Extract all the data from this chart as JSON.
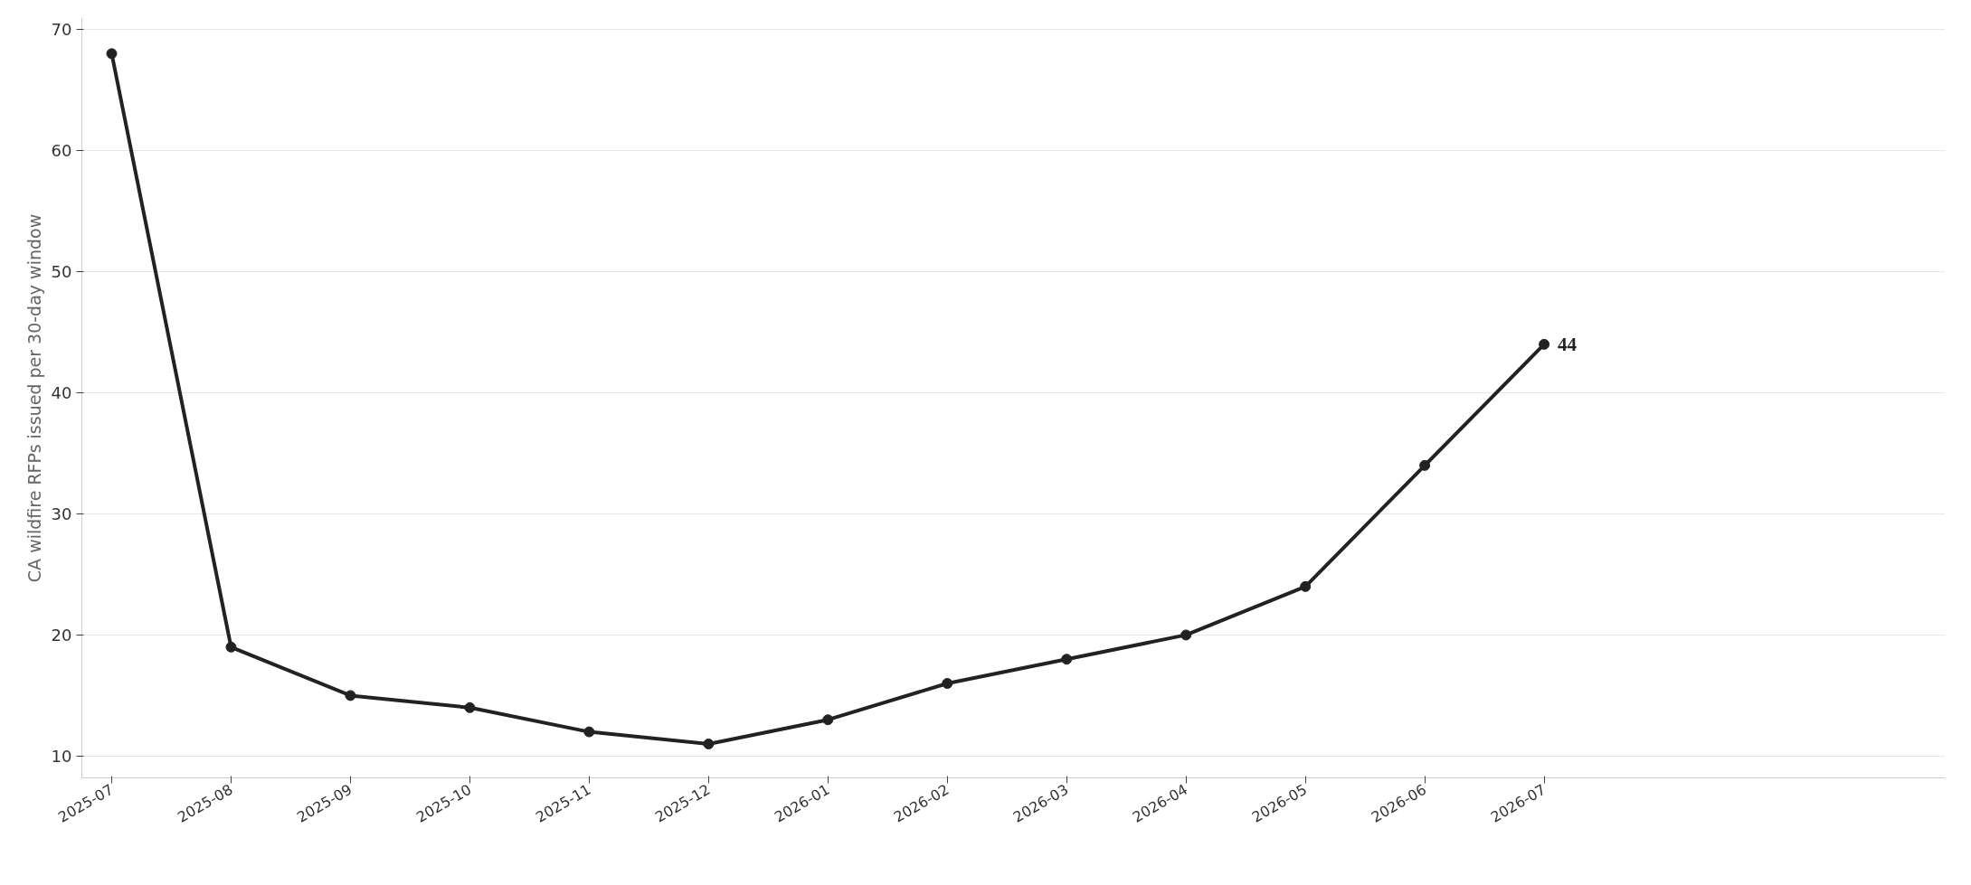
{
  "chart_data": {
    "type": "line",
    "ylabel": "CA wildfire RFPs issued per 30-day window",
    "categories": [
      "2025-07",
      "2025-08",
      "2025-09",
      "2025-10",
      "2025-11",
      "2025-12",
      "2026-01",
      "2026-02",
      "2026-03",
      "2026-04",
      "2026-05",
      "2026-06",
      "2026-07"
    ],
    "series": [
      {
        "color": "#222222",
        "values": [
          68,
          19,
          15,
          14,
          12,
          11,
          13,
          16,
          18,
          20,
          24,
          34,
          44
        ],
        "value_labels": [
          null,
          null,
          null,
          null,
          null,
          null,
          null,
          null,
          null,
          null,
          null,
          null,
          "44"
        ]
      }
    ],
    "ylim": [
      8.2,
      70.9
    ],
    "yticks": [
      10,
      20,
      30,
      40,
      50,
      60,
      70
    ],
    "grid": "y",
    "marker": "circle",
    "line_style": "solid"
  }
}
